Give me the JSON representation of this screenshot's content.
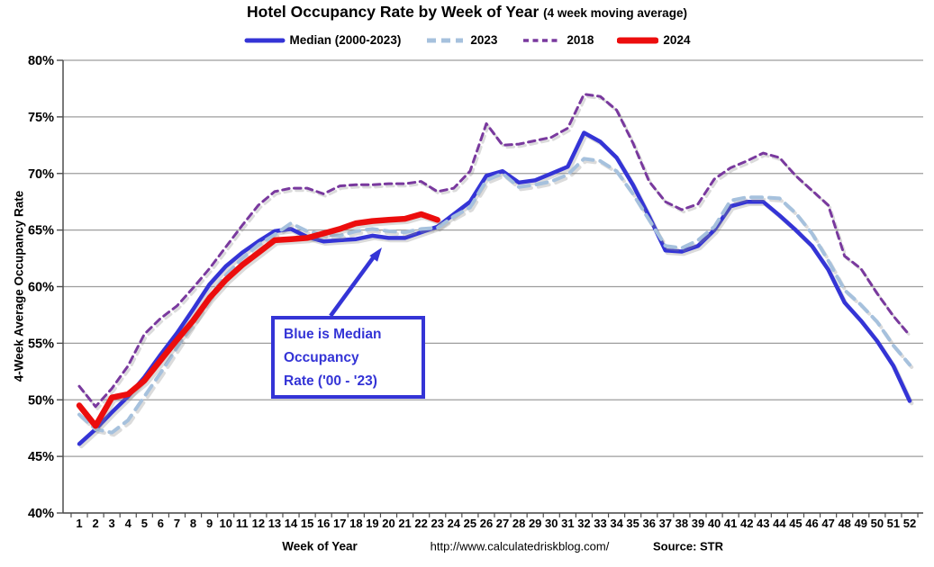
{
  "title": {
    "main": "Hotel Occupancy Rate by  Week of Year",
    "sub": "(4 week moving average)"
  },
  "y_axis_label": "4-Week Average Occupancy Rate",
  "footer": {
    "x_axis_label": "Week of Year",
    "url": "http://www.calculatedriskblog.com/",
    "source": "Source: STR"
  },
  "annotation": {
    "line1": "Blue is Median",
    "line2": "Occupancy",
    "line3": "Rate ('00 - '23)",
    "color": "#3434d6"
  },
  "legend": {
    "position": "top",
    "items": [
      {
        "label": "Median (2000-2023)",
        "color": "#3434d6",
        "swatch_width": 5,
        "swatch_dash": ""
      },
      {
        "label": "2023",
        "color": "#a6c1dd",
        "swatch_width": 5,
        "swatch_dash": "10 6"
      },
      {
        "label": "2018",
        "color": "#79399e",
        "swatch_width": 3.5,
        "swatch_dash": "6 4.5"
      },
      {
        "label": "2024",
        "color": "#ec0d0d",
        "swatch_width": 7,
        "swatch_dash": ""
      }
    ]
  },
  "chart_data": {
    "type": "line",
    "title": "Hotel Occupancy Rate by Week of Year (4 week moving average)",
    "xlabel": "Week of Year",
    "ylabel": "4-Week Average Occupancy Rate",
    "ylim": [
      40,
      80
    ],
    "y_ticks": [
      "40%",
      "45%",
      "50%",
      "55%",
      "60%",
      "65%",
      "70%",
      "75%",
      "80%"
    ],
    "grid": true,
    "legend_position": "top",
    "x": [
      1,
      2,
      3,
      4,
      5,
      6,
      7,
      8,
      9,
      10,
      11,
      12,
      13,
      14,
      15,
      16,
      17,
      18,
      19,
      20,
      21,
      22,
      23,
      24,
      25,
      26,
      27,
      28,
      29,
      30,
      31,
      32,
      33,
      34,
      35,
      36,
      37,
      38,
      39,
      40,
      41,
      42,
      43,
      44,
      45,
      46,
      47,
      48,
      49,
      50,
      51,
      52
    ],
    "series": [
      {
        "name": "Median (2000-2023)",
        "color": "#3434d6",
        "width": 4.5,
        "dash": null,
        "values": [
          46.1,
          47.4,
          48.9,
          50.3,
          52.0,
          54.0,
          55.9,
          58.0,
          60.2,
          61.8,
          63.0,
          64.0,
          64.9,
          65.1,
          64.4,
          64.0,
          64.1,
          64.2,
          64.5,
          64.3,
          64.3,
          64.8,
          65.3,
          66.4,
          67.5,
          69.8,
          70.2,
          69.2,
          69.4,
          70.0,
          70.6,
          73.6,
          72.8,
          71.4,
          69.0,
          66.2,
          63.2,
          63.1,
          63.6,
          65.0,
          67.1,
          67.5,
          67.5,
          66.3,
          65.0,
          63.6,
          61.5,
          58.6,
          57.0,
          55.2,
          53.0,
          49.9
        ]
      },
      {
        "name": "2023",
        "color": "#a6c1dd",
        "width": 4,
        "dash": "12 8",
        "values": [
          48.7,
          47.4,
          47.1,
          48.2,
          50.3,
          52.4,
          54.6,
          56.8,
          59.1,
          61.0,
          62.5,
          63.7,
          64.6,
          65.6,
          64.9,
          64.6,
          64.5,
          64.9,
          65.1,
          64.9,
          64.8,
          65.1,
          65.2,
          66.2,
          67.0,
          69.4,
          70.0,
          68.8,
          69.0,
          69.3,
          69.9,
          71.3,
          71.1,
          70.2,
          68.2,
          65.9,
          63.6,
          63.4,
          64.1,
          65.3,
          67.6,
          67.9,
          67.9,
          67.8,
          66.5,
          64.7,
          62.3,
          59.7,
          58.4,
          56.9,
          54.8,
          53.1
        ]
      },
      {
        "name": "2018",
        "color": "#79399e",
        "width": 3,
        "dash": "7.5 5.5",
        "values": [
          51.2,
          49.4,
          51.0,
          53.0,
          55.8,
          57.2,
          58.3,
          59.9,
          61.6,
          63.5,
          65.4,
          67.2,
          68.4,
          68.7,
          68.7,
          68.2,
          68.9,
          69.0,
          69.0,
          69.1,
          69.1,
          69.3,
          68.4,
          68.7,
          70.2,
          74.4,
          72.5,
          72.6,
          72.9,
          73.2,
          74.0,
          77.0,
          76.8,
          75.6,
          72.7,
          69.3,
          67.5,
          66.8,
          67.3,
          69.5,
          70.5,
          71.1,
          71.8,
          71.4,
          69.8,
          68.5,
          67.2,
          62.7,
          61.6,
          59.4,
          57.4,
          55.7
        ]
      },
      {
        "name": "2024",
        "color": "#ec0d0d",
        "width": 6.5,
        "dash": null,
        "values": [
          49.5,
          47.7,
          50.2,
          50.5,
          51.7,
          53.5,
          55.3,
          57.0,
          59.0,
          60.6,
          61.9,
          63.0,
          64.1,
          64.2,
          64.3,
          64.7,
          65.1,
          65.6,
          65.8,
          65.9,
          66.0,
          66.4,
          65.9,
          null,
          null,
          null,
          null,
          null,
          null,
          null,
          null,
          null,
          null,
          null,
          null,
          null,
          null,
          null,
          null,
          null,
          null,
          null,
          null,
          null,
          null,
          null,
          null,
          null,
          null,
          null,
          null,
          null
        ]
      }
    ]
  }
}
